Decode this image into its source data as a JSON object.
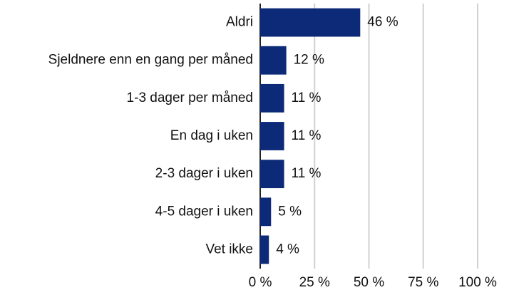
{
  "chart_data": {
    "type": "bar",
    "orientation": "horizontal",
    "categories": [
      "Aldri",
      "Sjeldnere enn en gang per måned",
      "1-3 dager per måned",
      "En dag i uken",
      "2-3 dager i uken",
      "4-5 dager i uken",
      "Vet ikke"
    ],
    "values": [
      46,
      12,
      11,
      11,
      11,
      5,
      4
    ],
    "value_labels": [
      "46 %",
      "12 %",
      "11 %",
      "11 %",
      "11 %",
      "5 %",
      "4 %"
    ],
    "color": "#0d2a78",
    "xlim": [
      0,
      100
    ],
    "xticks": [
      {
        "value": 0,
        "label": "0 %"
      },
      {
        "value": 25,
        "label": "25 %"
      },
      {
        "value": 50,
        "label": "50 %"
      },
      {
        "value": 75,
        "label": "75 %"
      },
      {
        "value": 100,
        "label": "100 %"
      }
    ],
    "grid": true
  }
}
